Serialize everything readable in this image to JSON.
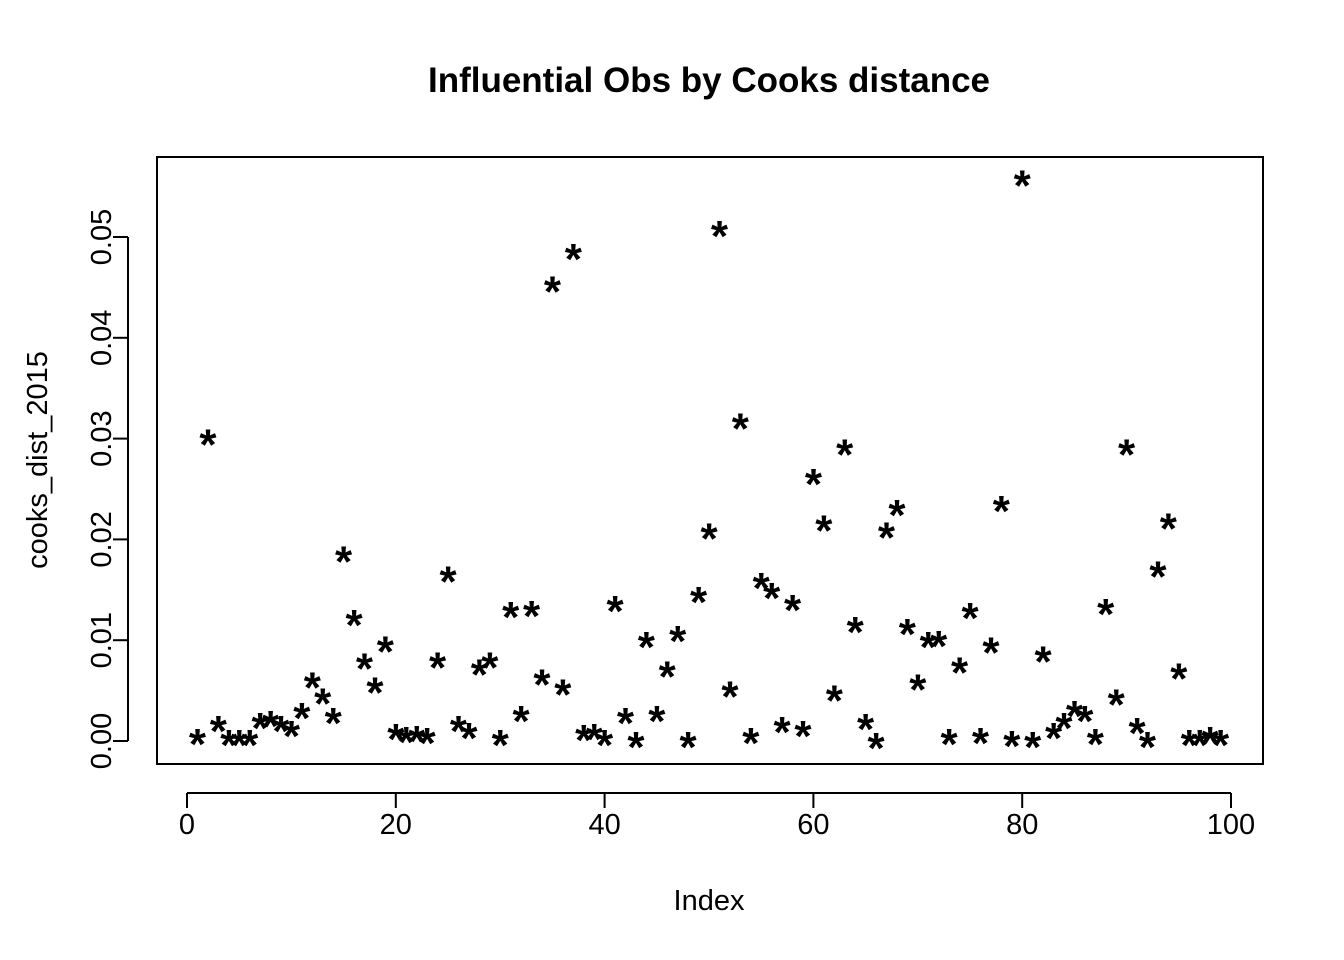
{
  "chart_data": {
    "type": "scatter",
    "title": "Influential Obs by Cooks distance",
    "xlabel": "Index",
    "ylabel": "cooks_dist_2015",
    "xlim": [
      0,
      100
    ],
    "ylim": [
      -0.002,
      0.058
    ],
    "x_ticks": [
      0,
      20,
      40,
      60,
      80,
      100
    ],
    "x_tick_labels": [
      "0",
      "20",
      "40",
      "60",
      "80",
      "100"
    ],
    "y_ticks": [
      0.0,
      0.01,
      0.02,
      0.03,
      0.04,
      0.05
    ],
    "y_tick_labels": [
      "0.00",
      "0.01",
      "0.02",
      "0.03",
      "0.04",
      "0.05"
    ],
    "marker": "*",
    "grid": false,
    "points": [
      {
        "x": 1,
        "y": 0.0001
      },
      {
        "x": 2,
        "y": 0.0298
      },
      {
        "x": 3,
        "y": 0.0014
      },
      {
        "x": 4,
        "y": 0.0
      },
      {
        "x": 5,
        "y": 0.0
      },
      {
        "x": 6,
        "y": 0.0
      },
      {
        "x": 7,
        "y": 0.0017
      },
      {
        "x": 8,
        "y": 0.0019
      },
      {
        "x": 9,
        "y": 0.0014
      },
      {
        "x": 10,
        "y": 0.0009
      },
      {
        "x": 11,
        "y": 0.0027
      },
      {
        "x": 12,
        "y": 0.0057
      },
      {
        "x": 13,
        "y": 0.0041
      },
      {
        "x": 14,
        "y": 0.0022
      },
      {
        "x": 15,
        "y": 0.0182
      },
      {
        "x": 16,
        "y": 0.0119
      },
      {
        "x": 17,
        "y": 0.0076
      },
      {
        "x": 18,
        "y": 0.0052
      },
      {
        "x": 19,
        "y": 0.0093
      },
      {
        "x": 20,
        "y": 0.0006
      },
      {
        "x": 21,
        "y": 0.0003
      },
      {
        "x": 22,
        "y": 0.0004
      },
      {
        "x": 23,
        "y": 0.0002
      },
      {
        "x": 24,
        "y": 0.0077
      },
      {
        "x": 25,
        "y": 0.0162
      },
      {
        "x": 26,
        "y": 0.0014
      },
      {
        "x": 27,
        "y": 0.0007
      },
      {
        "x": 28,
        "y": 0.007
      },
      {
        "x": 29,
        "y": 0.0077
      },
      {
        "x": 30,
        "y": 0.0
      },
      {
        "x": 31,
        "y": 0.0127
      },
      {
        "x": 32,
        "y": 0.0024
      },
      {
        "x": 33,
        "y": 0.0128
      },
      {
        "x": 34,
        "y": 0.006
      },
      {
        "x": 35,
        "y": 0.045
      },
      {
        "x": 36,
        "y": 0.005
      },
      {
        "x": 37,
        "y": 0.0482
      },
      {
        "x": 38,
        "y": 0.0005
      },
      {
        "x": 39,
        "y": 0.0006
      },
      {
        "x": 40,
        "y": 0.0
      },
      {
        "x": 41,
        "y": 0.0133
      },
      {
        "x": 42,
        "y": 0.0022
      },
      {
        "x": 43,
        "y": -0.0002
      },
      {
        "x": 44,
        "y": 0.0097
      },
      {
        "x": 45,
        "y": 0.0024
      },
      {
        "x": 46,
        "y": 0.0068
      },
      {
        "x": 47,
        "y": 0.0103
      },
      {
        "x": 48,
        "y": -0.0002
      },
      {
        "x": 49,
        "y": 0.0142
      },
      {
        "x": 50,
        "y": 0.0205
      },
      {
        "x": 51,
        "y": 0.0505
      },
      {
        "x": 52,
        "y": 0.0048
      },
      {
        "x": 53,
        "y": 0.0314
      },
      {
        "x": 54,
        "y": 0.0002
      },
      {
        "x": 55,
        "y": 0.0156
      },
      {
        "x": 56,
        "y": 0.0146
      },
      {
        "x": 57,
        "y": 0.0013
      },
      {
        "x": 58,
        "y": 0.0134
      },
      {
        "x": 59,
        "y": 0.0009
      },
      {
        "x": 60,
        "y": 0.0259
      },
      {
        "x": 61,
        "y": 0.0213
      },
      {
        "x": 62,
        "y": 0.0044
      },
      {
        "x": 63,
        "y": 0.0288
      },
      {
        "x": 64,
        "y": 0.0112
      },
      {
        "x": 65,
        "y": 0.0016
      },
      {
        "x": 66,
        "y": -0.0003
      },
      {
        "x": 67,
        "y": 0.0206
      },
      {
        "x": 68,
        "y": 0.0228
      },
      {
        "x": 69,
        "y": 0.011
      },
      {
        "x": 70,
        "y": 0.0055
      },
      {
        "x": 71,
        "y": 0.0097
      },
      {
        "x": 72,
        "y": 0.0098
      },
      {
        "x": 73,
        "y": 0.0001
      },
      {
        "x": 74,
        "y": 0.0072
      },
      {
        "x": 75,
        "y": 0.0126
      },
      {
        "x": 76,
        "y": 0.0002
      },
      {
        "x": 77,
        "y": 0.0092
      },
      {
        "x": 78,
        "y": 0.0232
      },
      {
        "x": 79,
        "y": -0.0001
      },
      {
        "x": 80,
        "y": 0.0555
      },
      {
        "x": 81,
        "y": -0.0002
      },
      {
        "x": 82,
        "y": 0.0083
      },
      {
        "x": 83,
        "y": 0.0007
      },
      {
        "x": 84,
        "y": 0.0017
      },
      {
        "x": 85,
        "y": 0.0029
      },
      {
        "x": 86,
        "y": 0.0024
      },
      {
        "x": 87,
        "y": 0.0001
      },
      {
        "x": 88,
        "y": 0.013
      },
      {
        "x": 89,
        "y": 0.004
      },
      {
        "x": 90,
        "y": 0.0288
      },
      {
        "x": 91,
        "y": 0.0012
      },
      {
        "x": 92,
        "y": -0.0002
      },
      {
        "x": 93,
        "y": 0.0167
      },
      {
        "x": 94,
        "y": 0.0215
      },
      {
        "x": 95,
        "y": 0.0066
      },
      {
        "x": 96,
        "y": 0.0
      },
      {
        "x": 97,
        "y": 0.0
      },
      {
        "x": 98,
        "y": 0.0003
      },
      {
        "x": 99,
        "y": 0.0
      }
    ]
  }
}
